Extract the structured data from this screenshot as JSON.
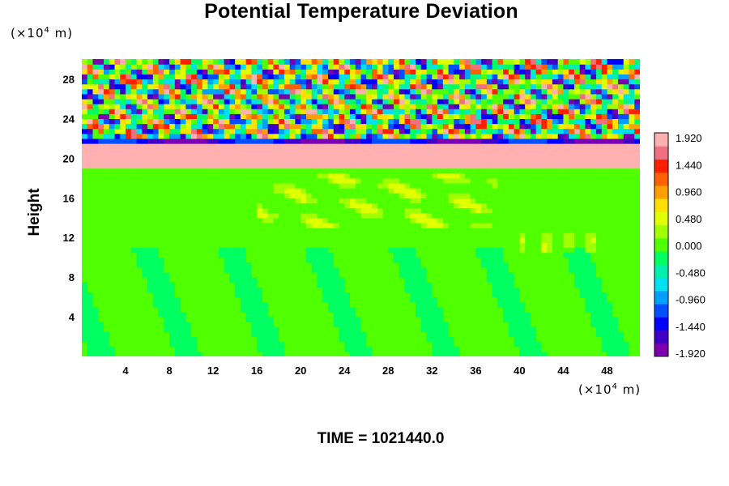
{
  "chart_data": {
    "type": "heatmap",
    "title": "Potential Temperature Deviation",
    "ylabel": "Height",
    "x_unit_prefix": "(×10",
    "x_unit_exp": "4",
    "x_unit_suffix": " m)",
    "y_unit_prefix": "(×10",
    "y_unit_exp": "4",
    "y_unit_suffix": " m)",
    "xlim": [
      0,
      51
    ],
    "ylim": [
      0,
      30
    ],
    "xticks": [
      4,
      8,
      12,
      16,
      20,
      24,
      28,
      32,
      36,
      40,
      44,
      48
    ],
    "yticks": [
      4,
      8,
      12,
      16,
      20,
      24,
      28
    ],
    "colorbar": {
      "min": -1.92,
      "max": 1.92,
      "ticks": [
        "1.920",
        "1.440",
        "0.960",
        "0.480",
        "0.000",
        "-0.480",
        "-0.960",
        "-1.440",
        "-1.920"
      ],
      "colors": [
        "#7a00b0",
        "#4000c8",
        "#0000ff",
        "#0050ff",
        "#00a0ff",
        "#00e0f0",
        "#00f0b0",
        "#00ff60",
        "#50ff00",
        "#a0ff00",
        "#e0ff00",
        "#ffe000",
        "#ffa000",
        "#ff6000",
        "#ff2000",
        "#f07080",
        "#ffb0b0"
      ]
    },
    "field_description_layers": [
      {
        "y_range": [
          0,
          19
        ],
        "dominant_value": 0.0
      },
      {
        "y_range": [
          19.5,
          21
        ],
        "dominant_value": 1.92
      },
      {
        "y_range": [
          21,
          22
        ],
        "dominant_value": -1.92
      },
      {
        "y_range": [
          22,
          30
        ],
        "dominant_value": "oscillating"
      }
    ]
  },
  "footer": {
    "time_label": "TIME = 1021440.0"
  }
}
